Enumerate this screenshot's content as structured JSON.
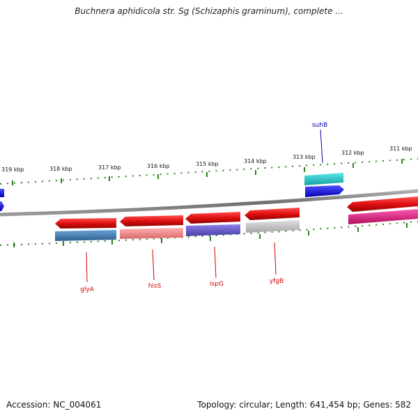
{
  "title": "Buchnera aphidicola str. Sg (Schizaphis graminum), complete ...",
  "footer": {
    "accession": "Accession: NC_004061",
    "stats": "Topology: circular; Length: 641,454 bp; Genes: 582"
  },
  "colors": {
    "backbone": "#808080",
    "tick": "#2e7d1e",
    "red_label": "#cc0000",
    "blue_label": "#0000aa"
  },
  "scale": {
    "unit": "kbp",
    "ticks": [
      "319 kbp",
      "318 kbp",
      "317 kbp",
      "316 kbp",
      "315 kbp",
      "314 kbp",
      "313 kbp",
      "312 kbp",
      "311 kbp"
    ]
  },
  "genes": {
    "labeled": [
      {
        "name": "glyA",
        "color": "#cc0000"
      },
      {
        "name": "hisS",
        "color": "#cc0000"
      },
      {
        "name": "ispG",
        "color": "#cc0000"
      },
      {
        "name": "yfgB",
        "color": "#cc0000"
      },
      {
        "name": "suhB",
        "color": "#0000aa"
      }
    ],
    "feature_colors": [
      "#e8141c",
      "#4a86c0",
      "#f08a8a",
      "#6a5acd",
      "#c6c6c6",
      "#22c8c8",
      "#1414f0",
      "#e81478"
    ]
  }
}
